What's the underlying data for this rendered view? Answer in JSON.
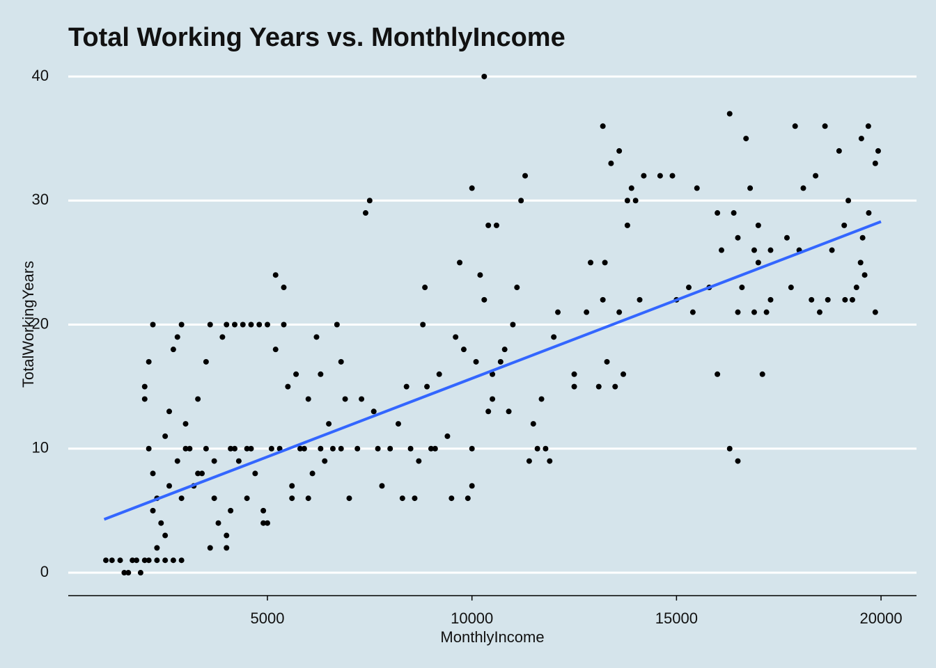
{
  "chart_data": {
    "type": "scatter",
    "title": "Total Working Years vs. MonthlyIncome",
    "x_label": "MonthlyIncome",
    "y_label": "TotalWorkingYears",
    "xlim": [
      131,
      20867
    ],
    "ylim": [
      -1.85,
      40.84
    ],
    "xticks": [
      5000,
      10000,
      15000,
      20000
    ],
    "yticks": [
      0,
      10,
      20,
      30,
      40
    ],
    "grid": true,
    "color": "#000000",
    "x": [
      1051,
      1200,
      1400,
      1500,
      1600,
      1700,
      1800,
      1900,
      2000,
      2100,
      2300,
      2500,
      2700,
      2900,
      2000,
      2000,
      2100,
      2200,
      2100,
      2200,
      2300,
      2200,
      2400,
      2500,
      2300,
      2600,
      2500,
      2700,
      2800,
      2900,
      3000,
      2800,
      3100,
      3300,
      3500,
      3600,
      3200,
      3400,
      3700,
      3900,
      4000,
      4200,
      4400,
      4600,
      4800,
      5000,
      4100,
      4300,
      4500,
      4700,
      4900,
      5000,
      3800,
      3600,
      4000,
      4000,
      5200,
      5400,
      5200,
      5400,
      5500,
      5700,
      6000,
      6200,
      6300,
      6500,
      6700,
      6800,
      6900,
      7000,
      5800,
      5600,
      6100,
      6400,
      6600,
      7300,
      7400,
      7500,
      7600,
      7800,
      8000,
      8200,
      8300,
      8400,
      8600,
      8700,
      8800,
      8850,
      8900,
      9000,
      9200,
      9400,
      9500,
      9600,
      9700,
      9800,
      10000,
      10000,
      10000,
      9900,
      10100,
      10200,
      10300,
      10300,
      10400,
      10500,
      10400,
      10600,
      10500,
      10700,
      10800,
      10900,
      11000,
      11100,
      11200,
      11300,
      11500,
      11400,
      11600,
      11700,
      11800,
      11900,
      12000,
      12100,
      12500,
      12500,
      12800,
      12900,
      13100,
      13200,
      13200,
      13250,
      13300,
      13400,
      13500,
      13600,
      13600,
      13700,
      13800,
      13800,
      13900,
      14000,
      14100,
      14200,
      14600,
      14900,
      15000,
      15300,
      15500,
      15400,
      15800,
      16000,
      16000,
      16100,
      16300,
      16300,
      16400,
      16500,
      16500,
      16500,
      16600,
      16700,
      16800,
      16900,
      16900,
      17000,
      17000,
      17100,
      17200,
      17300,
      17300,
      17700,
      17800,
      17900,
      18000,
      18100,
      18300,
      18400,
      18500,
      18700,
      18630,
      18800,
      18975,
      19100,
      19120,
      19200,
      19300,
      19400,
      19500,
      19520,
      19600,
      19690,
      19860,
      19860,
      19930,
      19550,
      19700,
      3000,
      3500,
      4200,
      4600,
      5100,
      5300,
      5900,
      6300,
      6800,
      7200,
      7700,
      8500,
      9100,
      2600,
      2900,
      3300,
      3700,
      4100,
      4500,
      4900,
      5600,
      6000
    ],
    "values": [
      1,
      1,
      1,
      0,
      0,
      1,
      1,
      0,
      1,
      1,
      1,
      1,
      1,
      1,
      15,
      14,
      17,
      20,
      10,
      8,
      6,
      5,
      4,
      3,
      2,
      13,
      11,
      18,
      19,
      20,
      12,
      9,
      10,
      14,
      17,
      20,
      7,
      8,
      6,
      19,
      20,
      20,
      20,
      20,
      20,
      20,
      10,
      9,
      10,
      8,
      5,
      4,
      4,
      2,
      3,
      2,
      24,
      23,
      18,
      20,
      15,
      16,
      14,
      19,
      16,
      12,
      20,
      17,
      14,
      6,
      10,
      6,
      8,
      9,
      10,
      14,
      29,
      30,
      13,
      7,
      10,
      12,
      6,
      15,
      6,
      9,
      20,
      23,
      15,
      10,
      16,
      11,
      6,
      19,
      25,
      18,
      31,
      7,
      10,
      6,
      17,
      24,
      40,
      22,
      28,
      16,
      13,
      28,
      14,
      17,
      18,
      13,
      20,
      23,
      30,
      32,
      12,
      9,
      10,
      14,
      10,
      9,
      19,
      21,
      15,
      16,
      21,
      25,
      15,
      22,
      36,
      25,
      17,
      33,
      15,
      34,
      21,
      16,
      28,
      30,
      31,
      30,
      22,
      32,
      32,
      32,
      22,
      23,
      31,
      21,
      23,
      29,
      16,
      26,
      10,
      37,
      29,
      9,
      27,
      21,
      23,
      35,
      31,
      26,
      21,
      28,
      25,
      16,
      21,
      26,
      22,
      27,
      23,
      36,
      26,
      31,
      22,
      32,
      21,
      22,
      36,
      26,
      34,
      28,
      22,
      30,
      22,
      23,
      25,
      35,
      24,
      36,
      33,
      21,
      34,
      27,
      29,
      10,
      10,
      10,
      10,
      10,
      10,
      10,
      10,
      10,
      10,
      10,
      10,
      10,
      7,
      6,
      8,
      9,
      5,
      6,
      4,
      7,
      6
    ],
    "trend": {
      "color": "#3366ff",
      "x": [
        1009,
        19999
      ],
      "values": [
        4.3,
        28.3
      ]
    }
  }
}
